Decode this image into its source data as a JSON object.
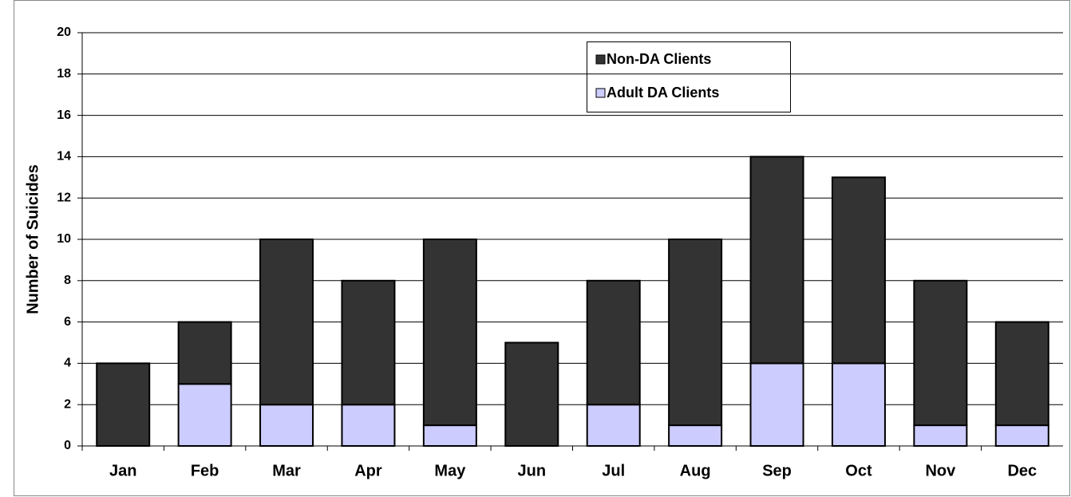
{
  "chart_data": {
    "type": "stacked_bar",
    "y_axis_label": "Number of Suicides",
    "categories": [
      "Jan",
      "Feb",
      "Mar",
      "Apr",
      "May",
      "Jun",
      "Jul",
      "Aug",
      "Sep",
      "Oct",
      "Nov",
      "Dec"
    ],
    "series": [
      {
        "name": "Non-DA Clients",
        "color": "#333333",
        "values": [
          4,
          3,
          8,
          6,
          9,
          5,
          6,
          9,
          10,
          9,
          7,
          5
        ]
      },
      {
        "name": "Adult DA Clients",
        "color": "#ccccff",
        "values": [
          0,
          3,
          2,
          2,
          1,
          0,
          2,
          1,
          4,
          4,
          1,
          1
        ]
      }
    ],
    "ylim": [
      0,
      20
    ],
    "yticks": [
      0,
      2,
      4,
      6,
      8,
      10,
      12,
      14,
      16,
      18,
      20
    ],
    "grid": true
  }
}
